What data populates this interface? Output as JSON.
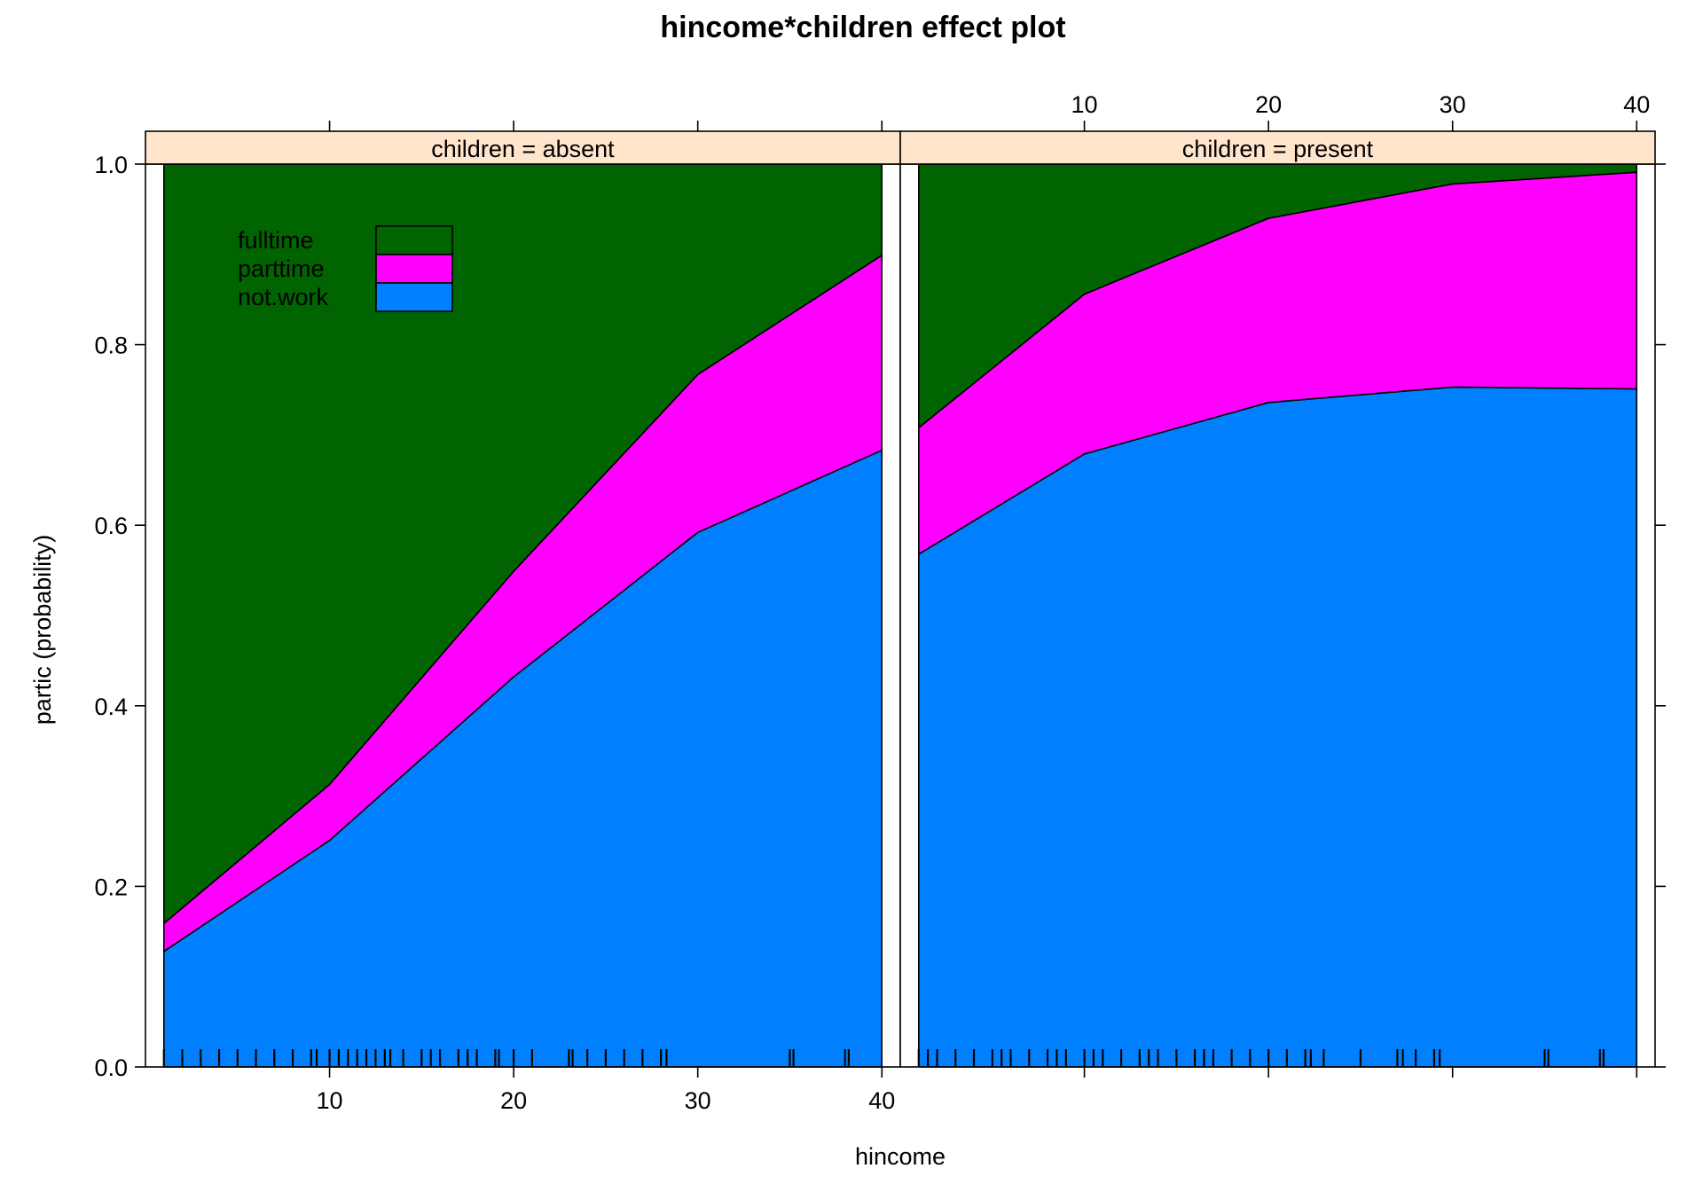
{
  "chart_data": {
    "type": "area",
    "title": "hincome*children effect plot",
    "xlabel": "hincome",
    "ylabel": "partic (probability)",
    "xlim": [
      0,
      41
    ],
    "ylim": [
      0,
      1
    ],
    "x_ticks": [
      10,
      20,
      30,
      40
    ],
    "y_ticks": [
      0.0,
      0.2,
      0.4,
      0.6,
      0.8,
      1.0
    ],
    "y_tick_labels": [
      "0.0",
      "0.2",
      "0.4",
      "0.6",
      "0.8",
      "1.0"
    ],
    "stacked": true,
    "legend": {
      "placement": "top-left inside first panel",
      "entries": [
        {
          "label": "fulltime",
          "color": "#006400"
        },
        {
          "label": "parttime",
          "color": "#FF00FF"
        },
        {
          "label": "not.work",
          "color": "#0080FF"
        }
      ]
    },
    "panels": [
      {
        "strip": "children = absent",
        "x": [
          1,
          10,
          20,
          30,
          40
        ],
        "series": [
          {
            "name": "not.work",
            "values": [
              0.128,
              0.251,
              0.432,
              0.592,
              0.683
            ]
          },
          {
            "name": "parttime",
            "values": [
              0.031,
              0.062,
              0.117,
              0.175,
              0.216
            ]
          },
          {
            "name": "fulltime",
            "values": [
              0.841,
              0.687,
              0.451,
              0.233,
              0.101
            ]
          }
        ],
        "rug": [
          1,
          2,
          3,
          4,
          5,
          6,
          7,
          8,
          9,
          9.3,
          10,
          10.5,
          11,
          11.5,
          12,
          12.5,
          13,
          13.3,
          14,
          15,
          15.5,
          16,
          17,
          17.5,
          18,
          19,
          19.2,
          20,
          21,
          23,
          23.2,
          24,
          25,
          26,
          27,
          28,
          28.3,
          35,
          35.2,
          38,
          38.2
        ]
      },
      {
        "strip": "children = present",
        "x": [
          1,
          10,
          20,
          30,
          40
        ],
        "series": [
          {
            "name": "not.work",
            "values": [
              0.568,
              0.679,
              0.736,
              0.753,
              0.751
            ]
          },
          {
            "name": "parttime",
            "values": [
              0.14,
              0.177,
              0.204,
              0.225,
              0.24
            ]
          },
          {
            "name": "fulltime",
            "values": [
              0.292,
              0.144,
              0.06,
              0.022,
              0.009
            ]
          }
        ],
        "rug": [
          1,
          1.5,
          2,
          3,
          4,
          5,
          5.5,
          6,
          7,
          8,
          8.5,
          9,
          10,
          10.5,
          11,
          12,
          13,
          13.5,
          14,
          15,
          16,
          16.5,
          17,
          18,
          19,
          20,
          21,
          22,
          22.3,
          23,
          25,
          27,
          27.3,
          28,
          29,
          29.3,
          35,
          35.2,
          38,
          38.2
        ]
      }
    ]
  }
}
